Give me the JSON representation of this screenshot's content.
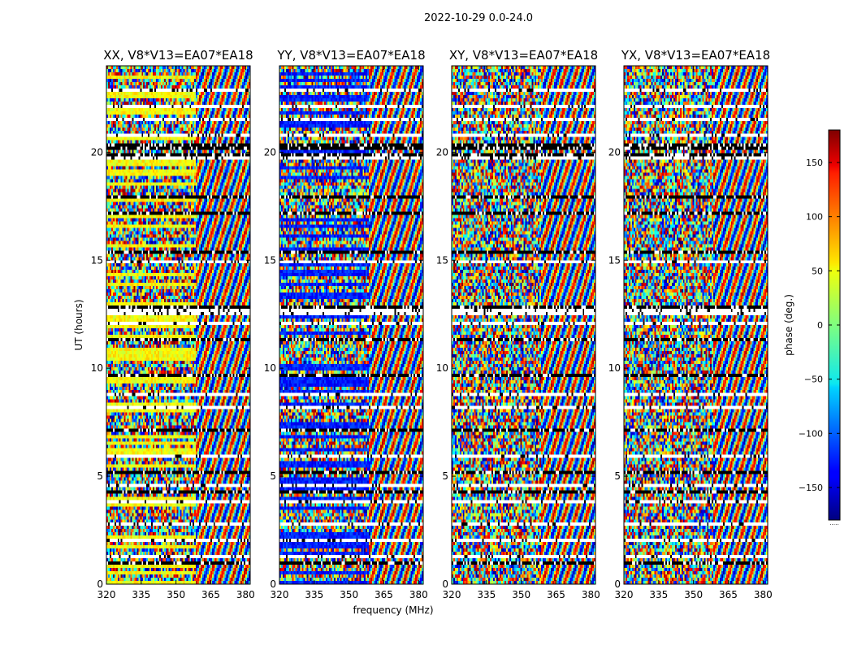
{
  "chart_data": {
    "type": "heatmap",
    "suptitle": "2022-10-29 0.0-24.0",
    "xlabel": "frequency (MHz)",
    "ylabel": "UT (hours)",
    "xlim": [
      320,
      382
    ],
    "ylim": [
      0,
      24
    ],
    "xticks": [
      320,
      335,
      350,
      365,
      380
    ],
    "yticks": [
      0,
      5,
      10,
      15,
      20
    ],
    "panels": [
      {
        "title": "XX, V8*V13=EA07*EA18",
        "pol": "XX"
      },
      {
        "title": "YY, V8*V13=EA07*EA18",
        "pol": "YY"
      },
      {
        "title": "XY, V8*V13=EA07*EA18",
        "pol": "XY"
      },
      {
        "title": "YX, V8*V13=EA07*EA18",
        "pol": "YX"
      }
    ],
    "colorbar": {
      "label": "phase (deg.)",
      "range": [
        -180,
        180
      ],
      "ticks": [
        150,
        100,
        50,
        0,
        -50,
        -100,
        -150
      ],
      "tick_labels": [
        "150",
        "100",
        "50",
        "0",
        "−50",
        "−100",
        "−150"
      ],
      "colormap": "jet"
    }
  }
}
